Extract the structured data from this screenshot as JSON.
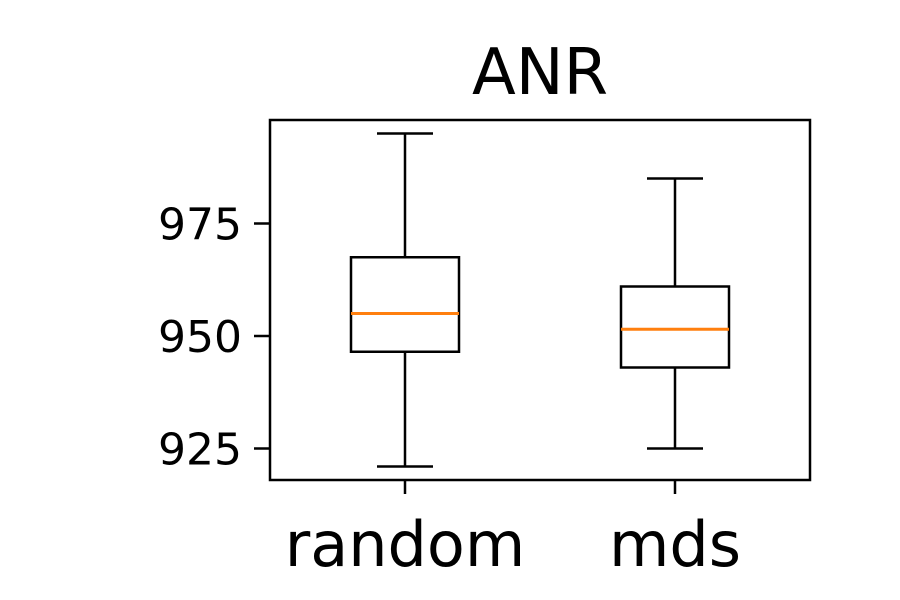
{
  "chart_data": {
    "type": "box",
    "title": "ANR",
    "xlabel": "",
    "ylabel": "",
    "categories": [
      "random",
      "mds"
    ],
    "ylim": [
      918,
      998
    ],
    "yticks": [
      925,
      950,
      975
    ],
    "grid": false,
    "boxes": [
      {
        "category": "random",
        "whisker_low": 921,
        "q1": 946.5,
        "median": 955,
        "q3": 967.5,
        "whisker_high": 995
      },
      {
        "category": "mds",
        "whisker_low": 925,
        "q1": 943,
        "median": 951.5,
        "q3": 961,
        "whisker_high": 985
      }
    ],
    "colors": {
      "median": "#ff7f0e",
      "box": "#000000",
      "axes": "#000000"
    }
  }
}
